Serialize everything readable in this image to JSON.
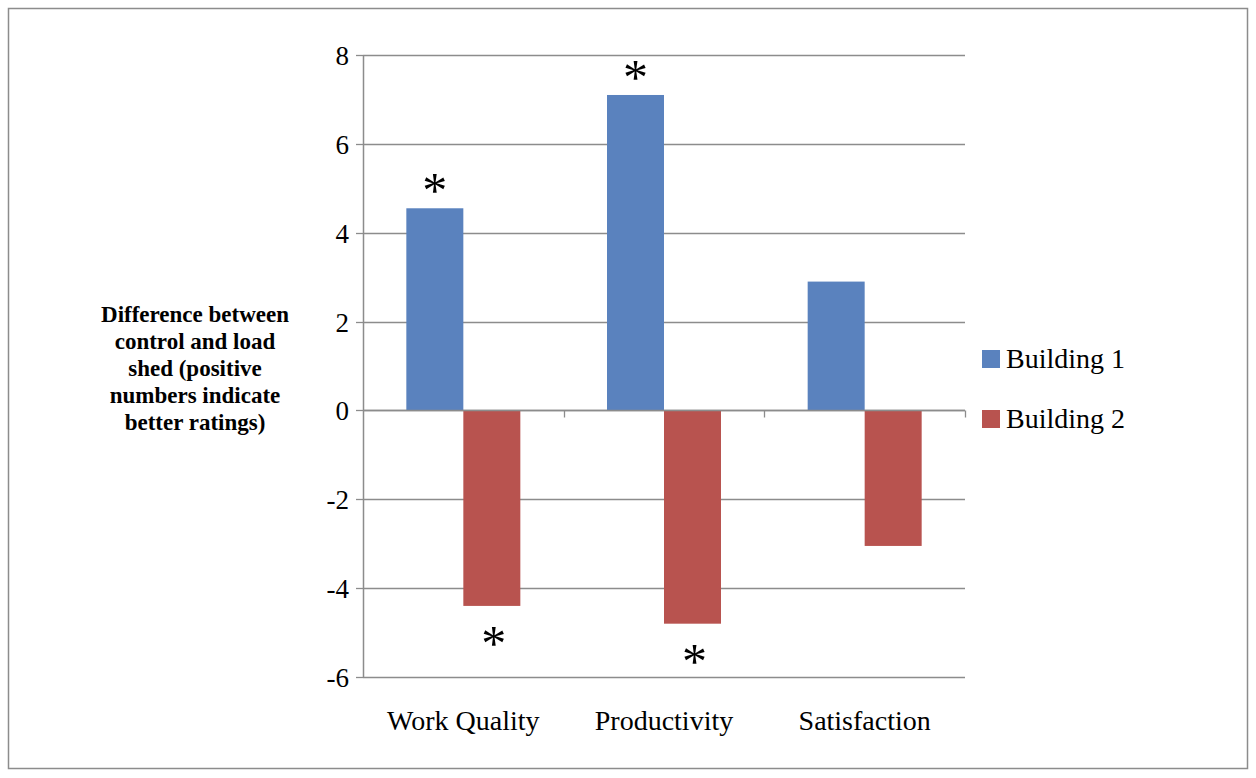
{
  "chart_data": {
    "type": "bar",
    "y_label": "Difference between control and load shed (positive numbers indicate better ratings)",
    "categories": [
      "Work Quality",
      "Productivity",
      "Satisfaction"
    ],
    "series": [
      {
        "name": "Building 1",
        "color": "#5a82be",
        "values": [
          4.55,
          7.1,
          2.9
        ]
      },
      {
        "name": "Building 2",
        "color": "#b8534f",
        "values": [
          -4.4,
          -4.8,
          -3.05
        ]
      }
    ],
    "ylim": [
      -6,
      8
    ],
    "yticks": [
      -6,
      -4,
      -2,
      0,
      2,
      4,
      6,
      8
    ],
    "grid": true,
    "legend": "right",
    "annotations": [
      {
        "text": "*",
        "series": "Building 1",
        "category": "Work Quality"
      },
      {
        "text": "*",
        "series": "Building 1",
        "category": "Productivity"
      },
      {
        "text": "*",
        "series": "Building 2",
        "category": "Work Quality"
      },
      {
        "text": "*",
        "series": "Building 2",
        "category": "Productivity"
      }
    ]
  }
}
